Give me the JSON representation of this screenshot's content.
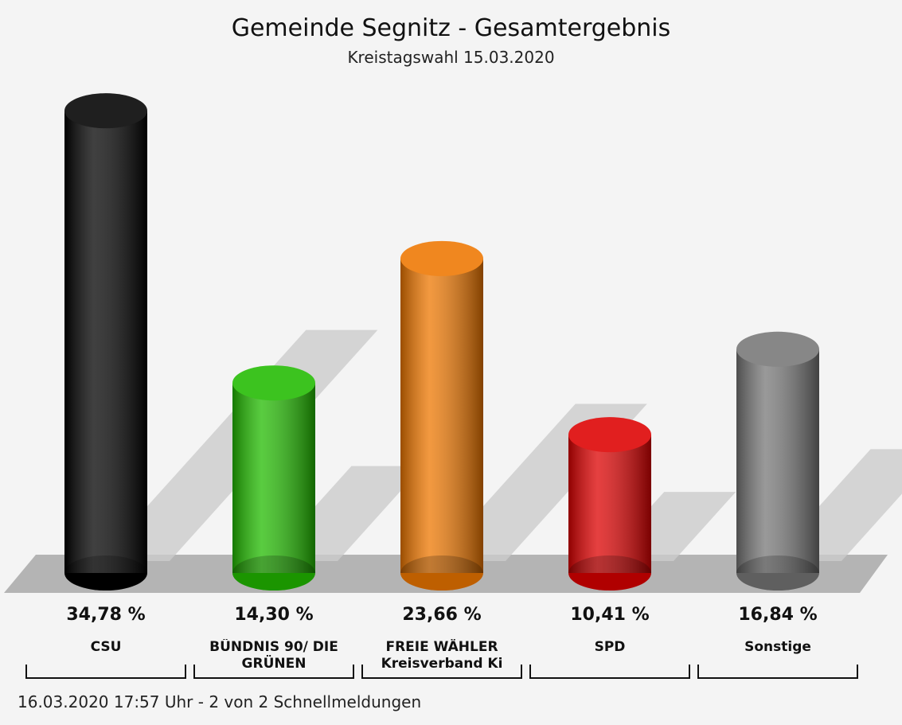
{
  "chart_data": {
    "type": "bar",
    "title": "Gemeinde Segnitz - Gesamtergebnis",
    "subtitle": "Kreistagswahl 15.03.2020",
    "categories": [
      "CSU",
      "BÜNDNIS 90/ DIE GRÜNEN",
      "FREIE WÄHLER Kreisverband Ki",
      "SPD",
      "Sonstige"
    ],
    "values": [
      34.78,
      14.3,
      23.66,
      10.41,
      16.84
    ],
    "value_labels": [
      "34,78 %",
      "14,30 %",
      "23,66 %",
      "10,41 %",
      "16,84 %"
    ],
    "colors": [
      "#000000",
      "#22bb00",
      "#ee7700",
      "#dd0000",
      "#777777"
    ],
    "footer": "16.03.2020 17:57 Uhr - 2 von 2 Schnellmeldungen"
  }
}
